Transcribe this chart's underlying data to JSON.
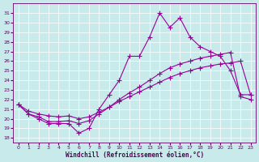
{
  "bg_color": "#c8eaea",
  "line_color": "#990099",
  "xlabel": "Windchill (Refroidissement éolien,°C)",
  "xlim": [
    -0.5,
    23.5
  ],
  "ylim": [
    17.5,
    32.0
  ],
  "yticks": [
    18,
    19,
    20,
    21,
    22,
    23,
    24,
    25,
    26,
    27,
    28,
    29,
    30,
    31
  ],
  "xticks": [
    0,
    1,
    2,
    3,
    4,
    5,
    6,
    7,
    8,
    9,
    10,
    11,
    12,
    13,
    14,
    15,
    16,
    17,
    18,
    19,
    20,
    21,
    22,
    23
  ],
  "x_hours": [
    0,
    1,
    2,
    3,
    4,
    5,
    6,
    7,
    8,
    9,
    10,
    11,
    12,
    13,
    14,
    15,
    16,
    17,
    18,
    19,
    20,
    21,
    22,
    23
  ],
  "y_series1": [
    21.5,
    20.5,
    20.0,
    19.5,
    19.5,
    19.5,
    18.5,
    19.0,
    21.0,
    22.5,
    24.0,
    26.5,
    26.5,
    28.5,
    31.0,
    29.5,
    30.5,
    28.5,
    27.5,
    27.0,
    26.5,
    25.0,
    22.5,
    22.5
  ],
  "y_series2": [
    21.5,
    20.5,
    20.2,
    19.7,
    19.7,
    19.8,
    19.5,
    19.8,
    20.5,
    21.2,
    22.0,
    22.7,
    23.3,
    24.0,
    24.7,
    25.3,
    25.7,
    26.0,
    26.3,
    26.5,
    26.7,
    26.9,
    22.3,
    22.0
  ],
  "y_series3": [
    21.5,
    20.8,
    20.5,
    20.3,
    20.2,
    20.3,
    20.0,
    20.2,
    20.7,
    21.2,
    21.8,
    22.3,
    22.8,
    23.3,
    23.8,
    24.3,
    24.7,
    25.0,
    25.3,
    25.5,
    25.7,
    25.8,
    26.0,
    22.5
  ]
}
